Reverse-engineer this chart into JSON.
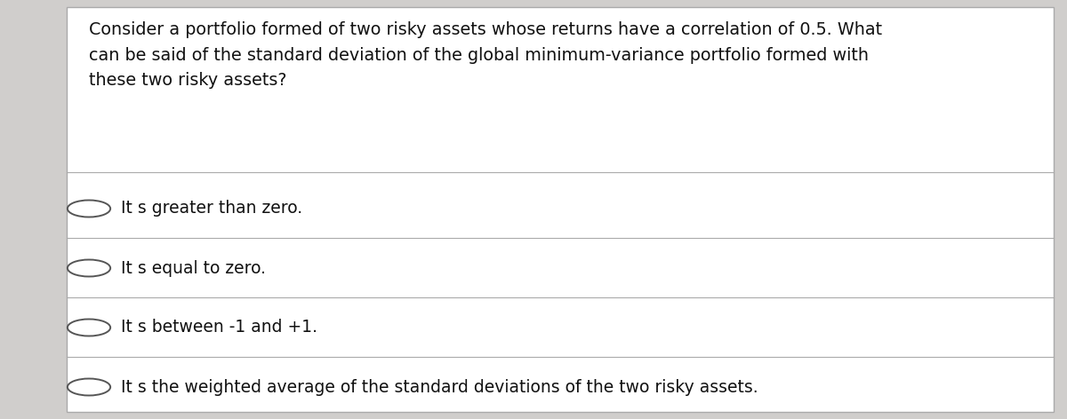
{
  "question": "Consider a portfolio formed of two risky assets whose returns have a correlation of 0.5. What\ncan be said of the standard deviation of the global minimum-variance portfolio formed with\nthese two risky assets?",
  "options": [
    "It s greater than zero.",
    "It s equal to zero.",
    "It s between -1 and +1.",
    "It s the weighted average of the standard deviations of the two risky assets."
  ],
  "bg_color": "#d0cecc",
  "card_color": "#f2f0ee",
  "white_panel_color": "#ffffff",
  "border_color": "#aaaaaa",
  "divider_color": "#aaaaaa",
  "text_color": "#111111",
  "circle_color": "#555555",
  "question_fontsize": 13.8,
  "option_fontsize": 13.5,
  "fig_width": 12.0,
  "fig_height": 4.72,
  "dpi": 100
}
